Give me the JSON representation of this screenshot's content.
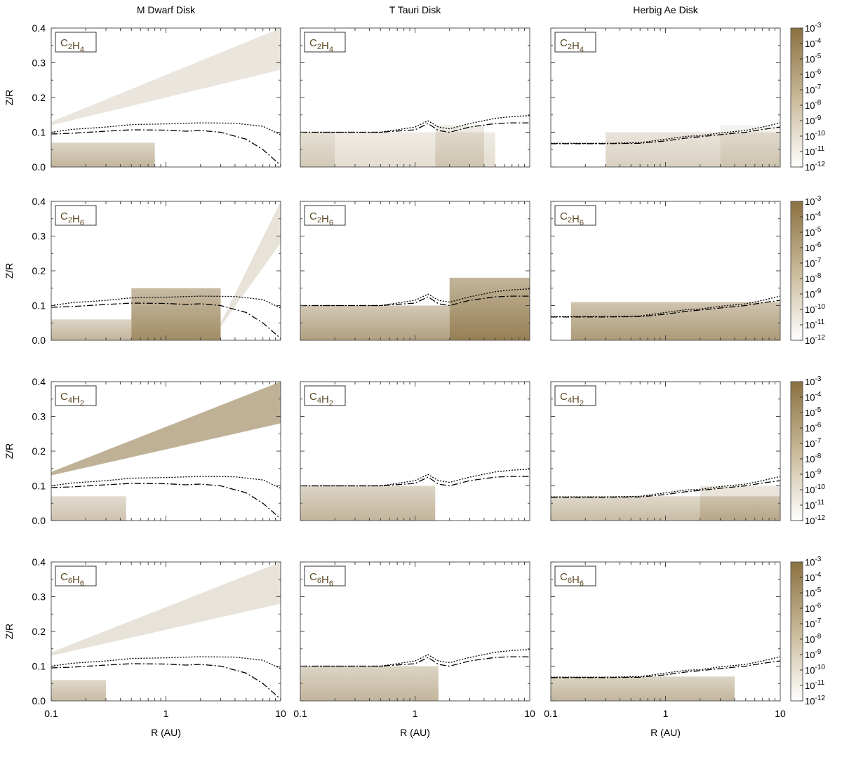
{
  "columns": [
    "M Dwarf Disk",
    "T Tauri Disk",
    "Herbig Ae Disk"
  ],
  "rows": [
    {
      "sub": "C",
      "n1": "2",
      "mid": "H",
      "n2": "4"
    },
    {
      "sub": "C",
      "n1": "2",
      "mid": "H",
      "n2": "6"
    },
    {
      "sub": "C",
      "n1": "4",
      "mid": "H",
      "n2": "2"
    },
    {
      "sub": "C",
      "n1": "6",
      "mid": "H",
      "n2": "6"
    }
  ],
  "axes": {
    "ylabel": "Z/R",
    "xlabel": "R (AU)",
    "yticks": [
      "0.4",
      "0.3",
      "0.2",
      "0.1",
      "0.0"
    ],
    "xticks": [
      "0.1",
      "1",
      "10"
    ],
    "xscale": "log",
    "xlim": [
      0.1,
      10
    ],
    "ylim": [
      0.0,
      0.4
    ]
  },
  "colorbar": {
    "base": "10",
    "exponents": [
      "-3",
      "-4",
      "-5",
      "-6",
      "-7",
      "-8",
      "-9",
      "-10",
      "-11",
      "-12"
    ],
    "color_max": "#8b7140",
    "color_min": "#ffffff"
  },
  "chart_data": {
    "type": "heatmap",
    "description_scale": "fractional abundance, log10",
    "line_series": {
      "M Dwarf Disk": {
        "dotted": {
          "x": [
            0.1,
            0.15,
            0.3,
            0.5,
            1,
            2,
            4,
            7,
            10
          ],
          "y": [
            0.1,
            0.108,
            0.115,
            0.122,
            0.124,
            0.127,
            0.126,
            0.117,
            0.093
          ]
        },
        "dashdot": {
          "x": [
            0.1,
            0.15,
            0.3,
            0.5,
            1,
            1.5,
            2,
            3,
            5,
            7,
            10
          ],
          "y": [
            0.095,
            0.097,
            0.103,
            0.107,
            0.106,
            0.103,
            0.105,
            0.1,
            0.08,
            0.05,
            0.005
          ]
        }
      },
      "T Tauri Disk": {
        "dotted": {
          "x": [
            0.1,
            0.5,
            1,
            1.3,
            1.6,
            2,
            3,
            5,
            7,
            10
          ],
          "y": [
            0.1,
            0.1,
            0.115,
            0.133,
            0.115,
            0.11,
            0.125,
            0.14,
            0.145,
            0.148
          ]
        },
        "dashdot": {
          "x": [
            0.1,
            0.5,
            1,
            1.3,
            1.6,
            2,
            3,
            5,
            7,
            10
          ],
          "y": [
            0.1,
            0.1,
            0.107,
            0.125,
            0.105,
            0.1,
            0.115,
            0.125,
            0.127,
            0.127
          ]
        }
      },
      "Herbig Ae Disk": {
        "dotted": {
          "x": [
            0.1,
            0.3,
            0.6,
            1,
            1.5,
            2,
            3,
            5,
            7,
            10
          ],
          "y": [
            0.068,
            0.068,
            0.07,
            0.08,
            0.088,
            0.09,
            0.098,
            0.105,
            0.115,
            0.127
          ]
        },
        "dashdot": {
          "x": [
            0.1,
            0.3,
            0.6,
            1,
            1.5,
            2,
            3,
            5,
            7,
            10
          ],
          "y": [
            0.067,
            0.067,
            0.068,
            0.075,
            0.083,
            0.087,
            0.093,
            0.1,
            0.108,
            0.115
          ]
        }
      }
    }
  }
}
